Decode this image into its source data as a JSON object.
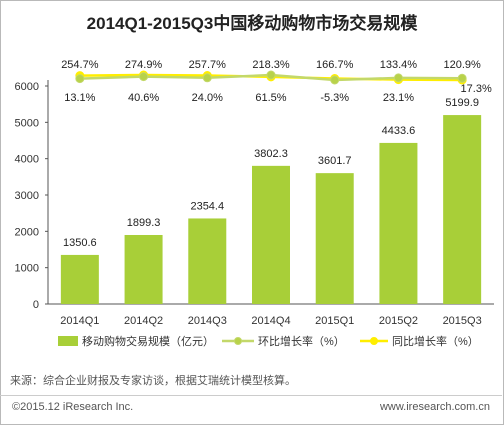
{
  "chart_data": {
    "type": "bar",
    "title": "2014Q1-2015Q3中国移动购物市场交易规模",
    "categories": [
      "2014Q1",
      "2014Q2",
      "2014Q3",
      "2014Q4",
      "2015Q1",
      "2015Q2",
      "2015Q3"
    ],
    "series": [
      {
        "name": "移动购物交易规模（亿元）",
        "type": "bar",
        "color": "#a8cf38",
        "values": [
          1350.6,
          1899.3,
          2354.4,
          3802.3,
          3601.7,
          4433.6,
          5199.9
        ]
      },
      {
        "name": "环比增长率（%）",
        "type": "line",
        "color": "#c3d86a",
        "values": [
          13.1,
          40.6,
          24.0,
          61.5,
          -5.3,
          23.1,
          17.3
        ],
        "labels": [
          "13.1%",
          "40.6%",
          "24.0%",
          "61.5%",
          "-5.3%",
          "23.1%",
          "17.3%"
        ]
      },
      {
        "name": "同比增长率（%）",
        "type": "line",
        "color": "#ffee00",
        "values": [
          254.7,
          274.9,
          257.7,
          218.3,
          166.7,
          133.4,
          120.9
        ],
        "labels": [
          "254.7%",
          "274.9%",
          "257.7%",
          "218.3%",
          "166.7%",
          "133.4%",
          "120.9%"
        ]
      }
    ],
    "bar_labels": [
      "1350.6",
      "1899.3",
      "2354.4",
      "3802.3",
      "3601.7",
      "4433.6",
      "5199.9"
    ],
    "yticks": [
      "0",
      "1000",
      "2000",
      "3000",
      "4000",
      "5000",
      "6000"
    ],
    "ylim": [
      0,
      6000
    ],
    "grid": false,
    "legend_position": "bottom"
  },
  "source_text": "来源：综合企业财报及专家访谈，根据艾瑞统计模型核算。",
  "footer": {
    "copyright": "©2015.12 iResearch Inc.",
    "website": "www.iresearch.com.cn"
  }
}
